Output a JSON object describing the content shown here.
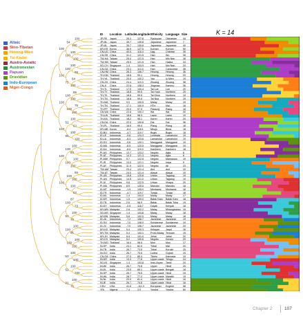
{
  "k_label": "K = 14",
  "footer": {
    "chapter": "Chapter 2",
    "page_number": "107"
  },
  "table_headers": {
    "id": "ID",
    "location": "Location",
    "latitude": "Latitude",
    "longitude": "Longitude",
    "ethnicity": "Ethnicity",
    "language": "Language",
    "size": "Size"
  },
  "legend": [
    {
      "label": "Altaic",
      "color": "#3b5bdb"
    },
    {
      "label": "Sino-Tibetan",
      "color": "#e03131"
    },
    {
      "label": "Hmong-Mien",
      "color": "#f59f00"
    },
    {
      "label": "Tai-Kadai",
      "color": "#fab005"
    },
    {
      "label": "Austro-Asiatic",
      "color": "#a61e4d"
    },
    {
      "label": "Austronesian",
      "color": "#2b8a3e"
    },
    {
      "label": "Papuan",
      "color": "#ae3ec9"
    },
    {
      "label": "Dravidian",
      "color": "#5c940d"
    },
    {
      "label": "Indo-European",
      "color": "#1c7ed6"
    },
    {
      "label": "Niger-Congo",
      "color": "#e8590c"
    }
  ],
  "colors": {
    "tree_line": "#e8a31c",
    "bootstrap_text": "#333333"
  },
  "rows": [
    [
      "JP-RK",
      "Japan",
      "26.3",
      "127.8",
      "Ryukyuan",
      "Okinawan",
      "44"
    ],
    [
      "JP-ML",
      "Japan",
      "35.7",
      "139.8",
      "Japanese",
      "Japanese",
      "7"
    ],
    [
      "JP-ML",
      "Japan",
      "35.7",
      "139.8",
      "Japanese",
      "Japanese",
      "40"
    ],
    [
      "KR-KR",
      "Korea",
      "36.9",
      "127.5",
      "Korean",
      "Korean",
      "90"
    ],
    [
      "CN-UG",
      "China",
      "40.0",
      "116.4",
      "Uyg",
      "Chinese",
      "35"
    ],
    [
      "CN-SH",
      "China",
      "31.2",
      "121.5",
      "Han",
      "Wu",
      "35"
    ],
    [
      "TW-HA",
      "Taiwan",
      "25.0",
      "121.5",
      "Han",
      "Min Nan",
      "38"
    ],
    [
      "TW-HB",
      "Taiwan",
      "25.0",
      "121.5",
      "Han",
      "Hakka",
      "34"
    ],
    [
      "SG-CH",
      "Singapore",
      "1.4",
      "103.9",
      "Han",
      "Min Nan",
      "20"
    ],
    [
      "CN-GA",
      "China",
      "23.1",
      "113.3",
      "Han",
      "Cantonese",
      "38"
    ],
    [
      "CN-HM",
      "China",
      "26.3",
      "106.7",
      "Hmong",
      "Hmong",
      "36"
    ],
    [
      "TH-HM",
      "Thailand",
      "18.8",
      "99.1",
      "Hmong",
      "Hmong",
      "20"
    ],
    [
      "TH-YA",
      "Thailand",
      "20.0",
      "100.2",
      "Yao",
      "Iu Mien",
      "19"
    ],
    [
      "CN-ZH",
      "China",
      "24.4",
      "110.3",
      "Zhuang",
      "Zhuang",
      "36"
    ],
    [
      "CN-JI",
      "China",
      "22.6",
      "108.3",
      "Jingmao",
      "Kammu",
      "36"
    ],
    [
      "TH-TL",
      "Thailand",
      "17.5",
      "100.4",
      "Tai Lue",
      "Lue",
      "20"
    ],
    [
      "TH-TY",
      "Thailand",
      "18.8",
      "99.5",
      "Tai Yuan",
      "Northern",
      "20"
    ],
    [
      "TH-TK",
      "Thailand",
      "18.8",
      "99.5",
      "Tai Khun",
      "Northern",
      "19"
    ],
    [
      "TH-TN",
      "Thailand",
      "18.8",
      "99.5",
      "Tai Nua",
      "Northern",
      "19"
    ],
    [
      "TH-MA",
      "Thailand",
      "9.0",
      "100.5",
      "Malay",
      "Malay",
      "19"
    ],
    [
      "TH-TN",
      "Thailand",
      "17.1",
      "100.9",
      "HTin",
      "Mal",
      "18"
    ],
    [
      "TH-PP",
      "Thailand",
      "20.0",
      "97.9",
      "Palaung",
      "Riang",
      "18"
    ],
    [
      "CN-WA",
      "China",
      "22.8",
      "100.2",
      "Wa",
      "Wa",
      "30"
    ],
    [
      "TH-LW",
      "Thailand",
      "18.8",
      "98.3",
      "Lawa",
      "Lawa",
      "19"
    ],
    [
      "TH-KA",
      "Thailand",
      "18.2",
      "98.1",
      "Karen",
      "Karen",
      "20"
    ],
    [
      "CN-DA",
      "China",
      "22.0",
      "100.8",
      "Dai",
      "Dai",
      "36"
    ],
    [
      "TH-PL",
      "Thailand",
      "18.9",
      "99.4",
      "Plang",
      "Plang",
      "18"
    ],
    [
      "KR-MB",
      "Korea",
      "-8.4",
      "116.1",
      "Mbojo",
      "Bima",
      "18"
    ],
    [
      "ID-BU",
      "Indonesia",
      "-4.7",
      "119.7",
      "Bugis",
      "Bugis",
      "18"
    ],
    [
      "ID-LE",
      "Indonesia",
      "-9.6",
      "124.3",
      "Lembata",
      "Lamaholot",
      "19"
    ],
    [
      "ID-LA",
      "Indonesia",
      "-8.3",
      "123.6",
      "Lamaholot",
      "Lamaholot",
      "19"
    ],
    [
      "ID-SO",
      "Indonesia",
      "-9.6",
      "120.1",
      "Manggarai",
      "Manggarai",
      "19"
    ],
    [
      "ID-MA",
      "Indonesia",
      "-8.5",
      "120.5",
      "Manggarai",
      "Manggarai",
      "19"
    ],
    [
      "ID-KA",
      "Indonesia",
      "-8.5",
      "119.0",
      "Kambera",
      "Kambera",
      "18"
    ],
    [
      "PI-AG",
      "Philippines",
      "13.7",
      "123.2",
      "Negrito",
      "Agta",
      "8"
    ],
    [
      "PI-AT",
      "Philippines",
      "14.3",
      "121.3",
      "Negrito",
      "Agta",
      "6"
    ],
    [
      "PI-MW",
      "Philippines",
      "9.7",
      "122.5",
      "Negrito",
      "Mamanwa",
      "19"
    ],
    [
      "PI-IR",
      "Philippines",
      "13.0",
      "121.1",
      "Negrito",
      "Iraya",
      "9"
    ],
    [
      "PI-AY",
      "Philippines",
      "11.9",
      "122.0",
      "Negrito",
      "Ati",
      "23"
    ],
    [
      "TW-AM",
      "Taiwan",
      "23.4",
      "121.4",
      "Ami",
      "Ami",
      "10"
    ],
    [
      "TW-AT",
      "Taiwan",
      "24.0",
      "121.4",
      "Atayal",
      "Atayal",
      "10"
    ],
    [
      "PI-UB",
      "Philippines",
      "15.8",
      "120.8",
      "Urban",
      "Tagalog",
      "19"
    ],
    [
      "PI-UN",
      "Philippines",
      "14.5",
      "121.0",
      "Urban",
      "Tagalog",
      "19"
    ],
    [
      "PI-UI",
      "Philippines",
      "9.8",
      "122.5",
      "Urban",
      "Visaya",
      "20"
    ],
    [
      "PI-MA",
      "Philippines",
      "8.5",
      "125.5",
      "Manobo",
      "Manobo",
      "18"
    ],
    [
      "ID-MT",
      "Indonesia",
      "-1.5",
      "105.0",
      "Mentawai",
      "Mentawai",
      "18"
    ],
    [
      "ID-TR",
      "Indonesia",
      "-4.7",
      "119.7",
      "Toraja",
      "Toraja",
      "18"
    ],
    [
      "ID-ML",
      "Indonesia",
      "1.4",
      "104.0",
      "Malay",
      "Malay",
      "17"
    ],
    [
      "ID-KR",
      "Indonesia",
      "1.5",
      "109.0",
      "Batak Karo",
      "Batak Karo",
      "18"
    ],
    [
      "ID-TB",
      "Indonesia",
      "2.6",
      "98.9",
      "Batak",
      "Batak Toba",
      "19"
    ],
    [
      "ID-DY",
      "Indonesia",
      "-0.5",
      "116.7",
      "Dayak",
      "Kenyah",
      "18"
    ],
    [
      "MY-MN",
      "Malaysia",
      "2.8",
      "102.2",
      "Malay",
      "Minangkabau",
      "19"
    ],
    [
      "SG-MS",
      "Singapore",
      "1.4",
      "103.8",
      "Malay",
      "Malay",
      "18"
    ],
    [
      "MY-BN",
      "Malaysia",
      "5.8",
      "102.0",
      "Malay",
      "Malay",
      "18"
    ],
    [
      "ID-JA",
      "Indonesia",
      "-7.2",
      "106.7",
      "Javanese",
      "Javanese",
      "19"
    ],
    [
      "ID-SU",
      "Indonesia",
      "-7.0",
      "108.0",
      "Sundanese",
      "Sundanese",
      "19"
    ],
    [
      "ID-JV",
      "Indonesia",
      "-7.0",
      "106.7",
      "Javanese",
      "Javanese",
      "20"
    ],
    [
      "MY-KD",
      "Malaysia",
      "5.4",
      "100.3",
      "Kelayan",
      "Jaqut",
      "18"
    ],
    [
      "MY-TM",
      "Malaysia",
      "5.4",
      "102.1",
      "Proto-Malay",
      "Temuan",
      "19"
    ],
    [
      "MY-JH",
      "Malaysia",
      "5.4",
      "101.0",
      "Jehai",
      "Jahai",
      "20"
    ],
    [
      "MY-KS",
      "Malaysia",
      "5.2",
      "100.6",
      "Negrito",
      "Kensiu",
      "20"
    ],
    [
      "TH-MO",
      "Thailand",
      "16.0",
      "98.9",
      "Mon",
      "Mon",
      "17"
    ],
    [
      "IN-SP",
      "India",
      "23.1",
      "82.0",
      "Tribal",
      "Mal",
      "20"
    ],
    [
      "IN-TB",
      "India",
      "26.7",
      "73.5",
      "Tribal",
      "Kurukh",
      "25"
    ],
    [
      "IN-GO",
      "India",
      "26.7",
      "75.5",
      "Lodha",
      "Gujrati",
      "19"
    ],
    [
      "CN-GA",
      "China",
      "27.3",
      "85.3",
      "Tibeto",
      "Kannada",
      "19"
    ],
    [
      "IN-DR",
      "India",
      "13.3",
      "77.8",
      "Upper-caste",
      "Telugu",
      "24"
    ],
    [
      "SG-IN",
      "Singapore",
      "1.4",
      "103.8",
      "Indo-Aryan",
      "Tamil",
      "20"
    ],
    [
      "IN-WI",
      "India",
      "26.7",
      "75.8",
      "Upper",
      "Hindi",
      "20"
    ],
    [
      "IN-EL",
      "India",
      "23.0",
      "85.1",
      "Upper-caste",
      "Bengali",
      "18"
    ],
    [
      "IN-SP",
      "India",
      "26.7",
      "75.5",
      "Upper-caste",
      "Hindi",
      "15"
    ],
    [
      "IN-WL",
      "India",
      "28.7",
      "77.2",
      "Upper-caste",
      "Marathi",
      "19"
    ],
    [
      "IN-NL",
      "India",
      "29.0",
      "81.4",
      "Upper-caste",
      "Hindi",
      "16"
    ],
    [
      "IN-IE",
      "India",
      "26.7",
      "74.5",
      "Upper-caste",
      "Hindi",
      "16"
    ],
    [
      "CEU",
      "USA",
      "41.5",
      "-111.9",
      "European",
      "English",
      "58"
    ],
    [
      "YRI",
      "Nigeria",
      "7.4",
      "3.9",
      "Yoruba",
      "Yoruba",
      "60"
    ]
  ],
  "bootstraps": [
    "100",
    "100",
    "100",
    "100",
    "100",
    "88",
    "64",
    "100",
    "65",
    "100",
    "75",
    "100",
    "100",
    "62",
    "100",
    "100",
    "100",
    "53",
    "100",
    "100",
    "55",
    "100",
    "100",
    "52",
    "87",
    "73",
    "100",
    "70",
    "100",
    "91",
    "100",
    "100",
    "100",
    "100",
    "100",
    "100",
    "100",
    "76",
    "54",
    "100",
    "100",
    "75",
    "100",
    "100",
    "52",
    "95",
    "100",
    "100",
    "100",
    "71",
    "100",
    "93",
    "100",
    "100",
    "53",
    "52",
    "91",
    "100",
    "100",
    "100",
    "100",
    "100",
    "100"
  ]
}
